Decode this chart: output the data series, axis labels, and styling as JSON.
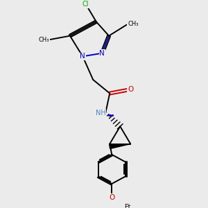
{
  "background_color": "#ebebeb",
  "bond_color": "#000000",
  "N_color": "#0000cc",
  "O_color": "#cc0000",
  "Cl_color": "#00aa00",
  "NH_color": "#4a86c8",
  "fig_w": 3.0,
  "fig_h": 3.0,
  "dpi": 100,
  "xlim": [
    0.0,
    1.0
  ],
  "ylim": [
    0.0,
    1.0
  ]
}
